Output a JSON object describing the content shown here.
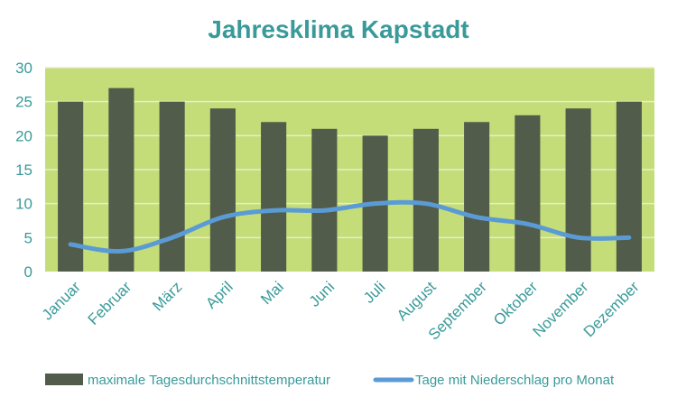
{
  "chart_data": {
    "type": "bar",
    "title": "Jahresklima Kapstadt",
    "categories": [
      "Januar",
      "Februar",
      "März",
      "April",
      "Mai",
      "Juni",
      "Juli",
      "August",
      "September",
      "Oktober",
      "November",
      "Dezember"
    ],
    "series": [
      {
        "name": "maximale Tagesdurchschnittstemperatur",
        "type": "bar",
        "values": [
          25,
          27,
          25,
          24,
          22,
          21,
          20,
          21,
          22,
          23,
          24,
          25
        ]
      },
      {
        "name": "Tage mit Niederschlag pro Monat",
        "type": "line",
        "values": [
          4,
          3,
          5,
          8,
          9,
          9,
          10,
          10,
          8,
          7,
          5,
          5
        ]
      }
    ],
    "ylim": [
      0,
      30
    ],
    "yticks": [
      0,
      5,
      10,
      15,
      20,
      25,
      30
    ],
    "grid": true,
    "legend": "bottom",
    "colors": {
      "plot_background": "#c5dd79",
      "bar": "#515c4a",
      "line": "#5b9bd5",
      "text": "#3a9a9a",
      "grid": "#e6efc5"
    }
  }
}
